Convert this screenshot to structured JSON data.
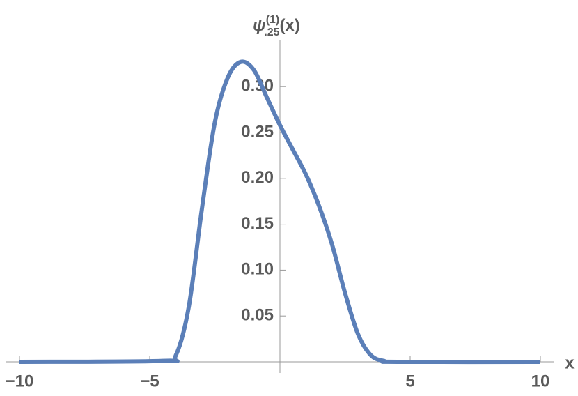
{
  "chart_data": {
    "type": "line",
    "y_label": {
      "symbol": "ψ",
      "subscript": ".25",
      "superscript": "(1)",
      "argument": "(x)"
    },
    "x_label": "x",
    "x": [
      -10,
      -4.5,
      -4,
      -3.5,
      -3,
      -2.5,
      -2,
      -1.5,
      -1,
      -0.5,
      0,
      0.5,
      1,
      1.5,
      2,
      2.5,
      3,
      3.5,
      4,
      4.5,
      10
    ],
    "series": [
      {
        "color": "#5b7fb8",
        "values": [
          0,
          0.001,
          0.007,
          0.06,
          0.166,
          0.261,
          0.31,
          0.327,
          0.318,
          0.288,
          0.258,
          0.231,
          0.204,
          0.17,
          0.128,
          0.075,
          0.03,
          0.007,
          0.001,
          0,
          0
        ]
      }
    ],
    "xlim": [
      -10,
      10
    ],
    "ylim": [
      0,
      0.345
    ],
    "xticks": [
      {
        "value": -10,
        "label": "−10"
      },
      {
        "value": -5,
        "label": "−5"
      },
      5,
      10
    ],
    "yticks": [
      0.05,
      {
        "value": 0.1,
        "label": "0.10"
      },
      0.15,
      {
        "value": 0.2,
        "label": "0.20"
      },
      0.25,
      {
        "value": 0.3,
        "label": "0.30"
      }
    ]
  }
}
